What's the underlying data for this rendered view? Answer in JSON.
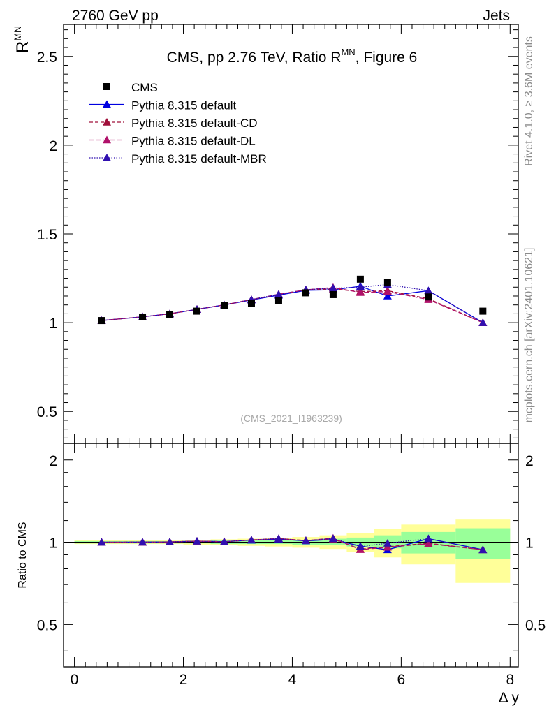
{
  "header": {
    "left": "2760 GeV pp",
    "right": "Jets"
  },
  "side_text": {
    "rivet": "Rivet 4.1.0, ≥ 3.6M events",
    "mcplots": "mcplots.cern.ch [arXiv:2401.10621]"
  },
  "chart_data": {
    "type": "line",
    "title": "CMS, pp 2.76 TeV, Ratio R",
    "title_sup": "MN",
    "title_suffix": ", Figure 6",
    "watermark": "(CMS_2021_I1963239)",
    "ylabel_main": "R",
    "ylabel_main_sup": "MN",
    "ylabel_ratio": "Ratio to CMS",
    "xlabel": "Δ y",
    "xlim": [
      -0.2,
      8.15
    ],
    "ylim_main": [
      0.32,
      2.68
    ],
    "ylim_ratio": [
      0.35,
      2.3
    ],
    "x_ticks": [
      "0",
      "2",
      "4",
      "6",
      "8"
    ],
    "y_ticks_main": [
      "0.5",
      "1",
      "1.5",
      "2",
      "2.5"
    ],
    "y_ticks_ratio": [
      "0.5",
      "1",
      "2"
    ],
    "x": [
      0.5,
      1.25,
      1.75,
      2.25,
      2.75,
      3.25,
      3.75,
      4.25,
      4.75,
      5.25,
      5.75,
      6.5,
      7.5
    ],
    "data": {
      "name": "CMS",
      "values": [
        1.012,
        1.032,
        1.047,
        1.065,
        1.095,
        1.108,
        1.125,
        1.168,
        1.158,
        1.245,
        1.225,
        1.145,
        1.065
      ],
      "ratio_band_inner": [
        {
          "x0": 0.0,
          "x1": 1.0,
          "lo": 0.99,
          "hi": 1.01
        },
        {
          "x0": 1.0,
          "x1": 1.5,
          "lo": 0.99,
          "hi": 1.01
        },
        {
          "x0": 1.5,
          "x1": 2.0,
          "lo": 0.99,
          "hi": 1.01
        },
        {
          "x0": 2.0,
          "x1": 2.5,
          "lo": 0.99,
          "hi": 1.01
        },
        {
          "x0": 2.5,
          "x1": 3.0,
          "lo": 0.985,
          "hi": 1.015
        },
        {
          "x0": 3.0,
          "x1": 3.5,
          "lo": 0.985,
          "hi": 1.015
        },
        {
          "x0": 3.5,
          "x1": 4.0,
          "lo": 0.985,
          "hi": 1.02
        },
        {
          "x0": 4.0,
          "x1": 4.5,
          "lo": 0.98,
          "hi": 1.02
        },
        {
          "x0": 4.5,
          "x1": 5.0,
          "lo": 0.975,
          "hi": 1.03
        },
        {
          "x0": 5.0,
          "x1": 5.5,
          "lo": 0.965,
          "hi": 1.04
        },
        {
          "x0": 5.5,
          "x1": 6.0,
          "lo": 0.95,
          "hi": 1.06
        },
        {
          "x0": 6.0,
          "x1": 7.0,
          "lo": 0.91,
          "hi": 1.09
        },
        {
          "x0": 7.0,
          "x1": 8.0,
          "lo": 0.87,
          "hi": 1.125
        }
      ],
      "ratio_band_outer": [
        {
          "x0": 0.0,
          "x1": 1.0,
          "lo": 0.985,
          "hi": 1.015
        },
        {
          "x0": 1.0,
          "x1": 1.5,
          "lo": 0.985,
          "hi": 1.015
        },
        {
          "x0": 1.5,
          "x1": 2.0,
          "lo": 0.985,
          "hi": 1.015
        },
        {
          "x0": 2.0,
          "x1": 2.5,
          "lo": 0.98,
          "hi": 1.02
        },
        {
          "x0": 2.5,
          "x1": 3.0,
          "lo": 0.975,
          "hi": 1.025
        },
        {
          "x0": 3.0,
          "x1": 3.5,
          "lo": 0.97,
          "hi": 1.03
        },
        {
          "x0": 3.5,
          "x1": 4.0,
          "lo": 0.965,
          "hi": 1.035
        },
        {
          "x0": 4.0,
          "x1": 4.5,
          "lo": 0.955,
          "hi": 1.045
        },
        {
          "x0": 4.5,
          "x1": 5.0,
          "lo": 0.945,
          "hi": 1.06
        },
        {
          "x0": 5.0,
          "x1": 5.5,
          "lo": 0.92,
          "hi": 1.08
        },
        {
          "x0": 5.5,
          "x1": 6.0,
          "lo": 0.88,
          "hi": 1.12
        },
        {
          "x0": 6.0,
          "x1": 7.0,
          "lo": 0.83,
          "hi": 1.16
        },
        {
          "x0": 7.0,
          "x1": 8.0,
          "lo": 0.71,
          "hi": 1.21
        }
      ]
    },
    "series": [
      {
        "name": "Pythia 8.315 default",
        "color": "#0000e0",
        "dash": "",
        "values": [
          1.012,
          1.033,
          1.05,
          1.075,
          1.1,
          1.128,
          1.155,
          1.182,
          1.185,
          1.205,
          1.15,
          1.18,
          1.0
        ]
      },
      {
        "name": "Pythia 8.315 default-CD",
        "color": "#a0103a",
        "dash": "5,3",
        "values": [
          1.012,
          1.033,
          1.05,
          1.075,
          1.1,
          1.13,
          1.16,
          1.185,
          1.19,
          1.175,
          1.18,
          1.135,
          1.0
        ]
      },
      {
        "name": "Pythia 8.315 default-DL",
        "color": "#b0106a",
        "dash": "7,3",
        "values": [
          1.012,
          1.033,
          1.05,
          1.075,
          1.1,
          1.13,
          1.16,
          1.185,
          1.198,
          1.17,
          1.175,
          1.13,
          1.0
        ]
      },
      {
        "name": "Pythia 8.315 default-MBR",
        "color": "#3010b0",
        "dash": "1.5,2",
        "values": [
          1.012,
          1.033,
          1.05,
          1.075,
          1.1,
          1.13,
          1.16,
          1.185,
          1.195,
          1.2,
          1.215,
          1.18,
          1.0
        ]
      }
    ]
  }
}
